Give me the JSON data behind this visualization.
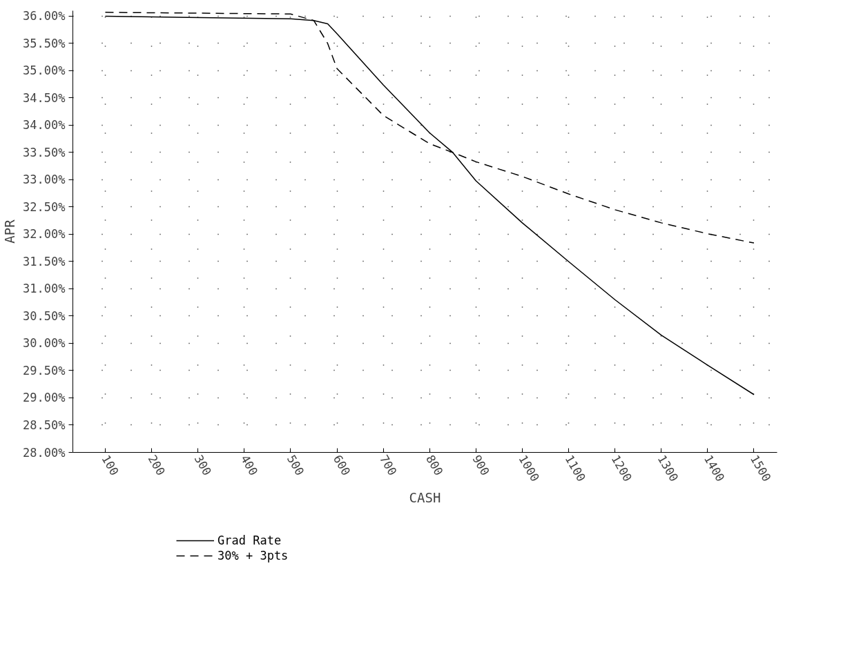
{
  "chart_data": {
    "type": "line",
    "xlabel": "CASH",
    "ylabel": "APR",
    "x": [
      100,
      500,
      550,
      580,
      600,
      700,
      800,
      850,
      900,
      1000,
      1100,
      1200,
      1300,
      1400,
      1500
    ],
    "series": [
      {
        "name": "Grad Rate",
        "color": "#000000",
        "line_style": "solid",
        "values": [
          36.0,
          35.95,
          35.92,
          35.86,
          35.68,
          34.74,
          33.86,
          33.5,
          32.98,
          32.21,
          31.5,
          30.8,
          30.15,
          29.6,
          29.06
        ]
      },
      {
        "name": "30% + 3pts",
        "color": "#000000",
        "line_style": "dashed",
        "values": [
          36.07,
          36.04,
          35.92,
          35.5,
          35.04,
          34.18,
          33.66,
          33.5,
          33.33,
          33.06,
          32.74,
          32.45,
          32.21,
          32.01,
          31.84
        ]
      }
    ],
    "xlim": [
      30,
      1550
    ],
    "ylim": [
      28,
      36.1
    ],
    "xticks": [
      100,
      200,
      300,
      400,
      500,
      600,
      700,
      800,
      900,
      1000,
      1100,
      1200,
      1300,
      1400,
      1500
    ],
    "yticks": [
      {
        "value": 28,
        "label": "28.00%"
      },
      {
        "value": 28.5,
        "label": "28.50%"
      },
      {
        "value": 29,
        "label": "29.00%"
      },
      {
        "value": 29.5,
        "label": "29.50%"
      },
      {
        "value": 30,
        "label": "30.00%"
      },
      {
        "value": 30.5,
        "label": "30.50%"
      },
      {
        "value": 31,
        "label": "31.00%"
      },
      {
        "value": 31.5,
        "label": "31.50%"
      },
      {
        "value": 32,
        "label": "32.00%"
      },
      {
        "value": 32.5,
        "label": "32.50%"
      },
      {
        "value": 33,
        "label": "33.00%"
      },
      {
        "value": 33.5,
        "label": "33.50%"
      },
      {
        "value": 34,
        "label": "34.00%"
      },
      {
        "value": 34.5,
        "label": "34.50%"
      },
      {
        "value": 35,
        "label": "35.00%"
      },
      {
        "value": 35.5,
        "label": "35.50%"
      },
      {
        "value": 36,
        "label": "36.00%"
      }
    ],
    "grid": true,
    "legend": "bottom",
    "marker": "none"
  }
}
